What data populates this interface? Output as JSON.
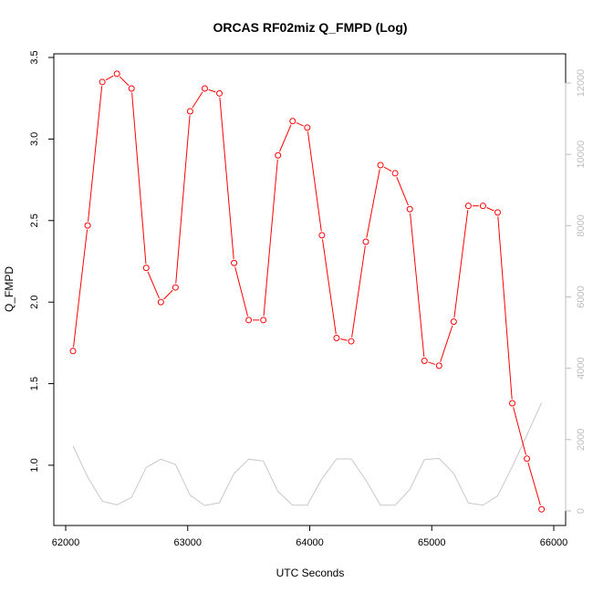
{
  "chart_data": {
    "type": "line",
    "title": "ORCAS RF02miz Q_FMPD (Log)",
    "xlabel": "UTC Seconds",
    "ylabel": "Q_FMPD",
    "xlim": [
      62000,
      66000
    ],
    "ylim": [
      0.72,
      3.5
    ],
    "y2lim": [
      0,
      12000
    ],
    "x_ticks": [
      62000,
      63000,
      64000,
      65000,
      66000
    ],
    "y_ticks": [
      1.0,
      1.5,
      2.0,
      2.5,
      3.0,
      3.5
    ],
    "y2_ticks": [
      0,
      2000,
      4000,
      6000,
      8000,
      10000,
      12000
    ],
    "x_tick_labels": [
      "62000",
      "63000",
      "64000",
      "65000",
      "66000"
    ],
    "y_tick_labels": [
      "1.0",
      "1.5",
      "2.0",
      "2.5",
      "3.0",
      "3.5"
    ],
    "y2_tick_labels": [
      "0",
      "2000",
      "4000",
      "6000",
      "8000",
      "10000",
      "12000"
    ],
    "grid": false,
    "series": [
      {
        "axis": "left",
        "color": "#ff0000",
        "markers": "open-circle",
        "x": [
          62060,
          62180,
          62300,
          62420,
          62540,
          62660,
          62780,
          62900,
          63020,
          63140,
          63260,
          63380,
          63500,
          63620,
          63740,
          63860,
          63980,
          64100,
          64220,
          64340,
          64460,
          64580,
          64700,
          64820,
          64940,
          65060,
          65180,
          65300,
          65420,
          65540,
          65660,
          65780,
          65900
        ],
        "values": [
          1.7,
          2.47,
          3.35,
          3.4,
          3.31,
          2.21,
          2.0,
          2.09,
          3.17,
          3.31,
          3.28,
          2.24,
          1.89,
          1.89,
          2.9,
          3.11,
          3.07,
          2.41,
          1.78,
          1.76,
          2.37,
          2.84,
          2.79,
          2.57,
          1.64,
          1.61,
          1.88,
          2.59,
          2.59,
          2.55,
          1.38,
          1.04,
          0.73
        ]
      },
      {
        "axis": "right",
        "color": "#c8c8c8",
        "markers": "none",
        "x": [
          62060,
          62180,
          62300,
          62420,
          62540,
          62660,
          62780,
          62900,
          63020,
          63140,
          63260,
          63380,
          63500,
          63620,
          63740,
          63860,
          63980,
          64100,
          64220,
          64340,
          64460,
          64580,
          64700,
          64820,
          64940,
          65060,
          65180,
          65300,
          65420,
          65540,
          65660,
          65780,
          65900
        ],
        "values": [
          1820,
          950,
          270,
          170,
          380,
          1220,
          1450,
          1300,
          440,
          150,
          230,
          1050,
          1450,
          1400,
          540,
          160,
          160,
          900,
          1460,
          1460,
          860,
          160,
          160,
          600,
          1440,
          1470,
          1050,
          220,
          160,
          420,
          1240,
          2130,
          3030
        ]
      }
    ]
  }
}
